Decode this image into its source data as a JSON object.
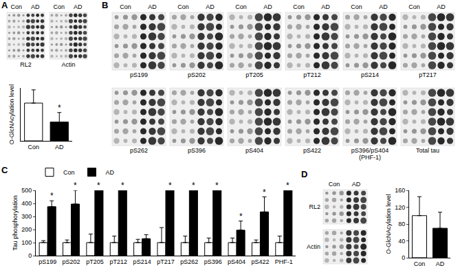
{
  "blots": [
    {
      "panel": "A",
      "groups": [
        "Con",
        "AD"
      ],
      "labels": [
        "RL2",
        "Actin"
      ]
    },
    {
      "panel": "B",
      "groups": [
        "Con",
        "AD"
      ],
      "labels": [
        "pS199",
        "pS202",
        "pT205",
        "pT212",
        "pS214",
        "pT217",
        "pS262",
        "pS396",
        "pS404",
        "pS422",
        [
          "pS396/pS404",
          "(PHF-1)"
        ],
        "Total tau"
      ]
    },
    {
      "panel": "D",
      "groups": [
        "Con",
        "AD"
      ],
      "labels": [
        "RL2",
        "Actin"
      ]
    }
  ],
  "chart_data": [
    {
      "panel": "A",
      "type": "bar",
      "categories": [
        "Con",
        "AD"
      ],
      "values": [
        100,
        50
      ],
      "errors": [
        35,
        25
      ],
      "colors": [
        "#ffffff",
        "#000000"
      ],
      "y_label": "O-GlcNAcylation level",
      "ylim": [
        0,
        140
      ],
      "tick_labels": "x",
      "annotations": [
        {
          "text": "*",
          "category": "AD"
        }
      ]
    },
    {
      "panel": "C",
      "type": "bar",
      "categories": [
        "pS199",
        "pS202",
        "pT205",
        "pT212",
        "pS214",
        "pT217",
        "pS262",
        "pS396",
        "pS404",
        "pS422",
        "PHF-1"
      ],
      "series": [
        {
          "name": "Con",
          "color": "#ffffff",
          "values": [
            100,
            100,
            100,
            100,
            100,
            100,
            100,
            100,
            100,
            100,
            100
          ],
          "errors": [
            15,
            20,
            65,
            50,
            25,
            115,
            50,
            35,
            35,
            20,
            50
          ]
        },
        {
          "name": "AD",
          "color": "#000000",
          "values": [
            375,
            395,
            500,
            500,
            130,
            500,
            500,
            500,
            195,
            335,
            500
          ],
          "errors": [
            45,
            105,
            null,
            null,
            30,
            null,
            null,
            null,
            70,
            115,
            null
          ]
        }
      ],
      "y_label": "Tau phosphorylation",
      "ylim": [
        0,
        500
      ],
      "yticks": [
        0,
        100,
        200,
        300,
        400,
        500
      ],
      "legend": "top left",
      "annotations": [
        {
          "text": "*",
          "category": "pS199",
          "series": "AD"
        },
        {
          "text": "*",
          "category": "pS202",
          "series": "AD"
        },
        {
          "text": "*",
          "category": "pT205",
          "series": "AD"
        },
        {
          "text": "*",
          "category": "pT212",
          "series": "AD"
        },
        {
          "text": "*",
          "category": "pT217",
          "series": "AD"
        },
        {
          "text": "*",
          "category": "pS262",
          "series": "AD"
        },
        {
          "text": "*",
          "category": "pS396",
          "series": "AD"
        },
        {
          "text": "*",
          "category": "pS404",
          "series": "AD"
        },
        {
          "text": "*",
          "category": "pS422",
          "series": "AD"
        },
        {
          "text": "*",
          "category": "PHF-1",
          "series": "AD"
        }
      ]
    },
    {
      "panel": "D",
      "type": "bar",
      "categories": [
        "Con",
        "AD"
      ],
      "values": [
        100,
        70
      ],
      "errors": [
        45,
        38
      ],
      "colors": [
        "#ffffff",
        "#000000"
      ],
      "y_label": "O-GlcNAcylation level",
      "ylim": [
        0,
        160
      ],
      "yticks": [
        0,
        40,
        80,
        120,
        160
      ]
    }
  ]
}
